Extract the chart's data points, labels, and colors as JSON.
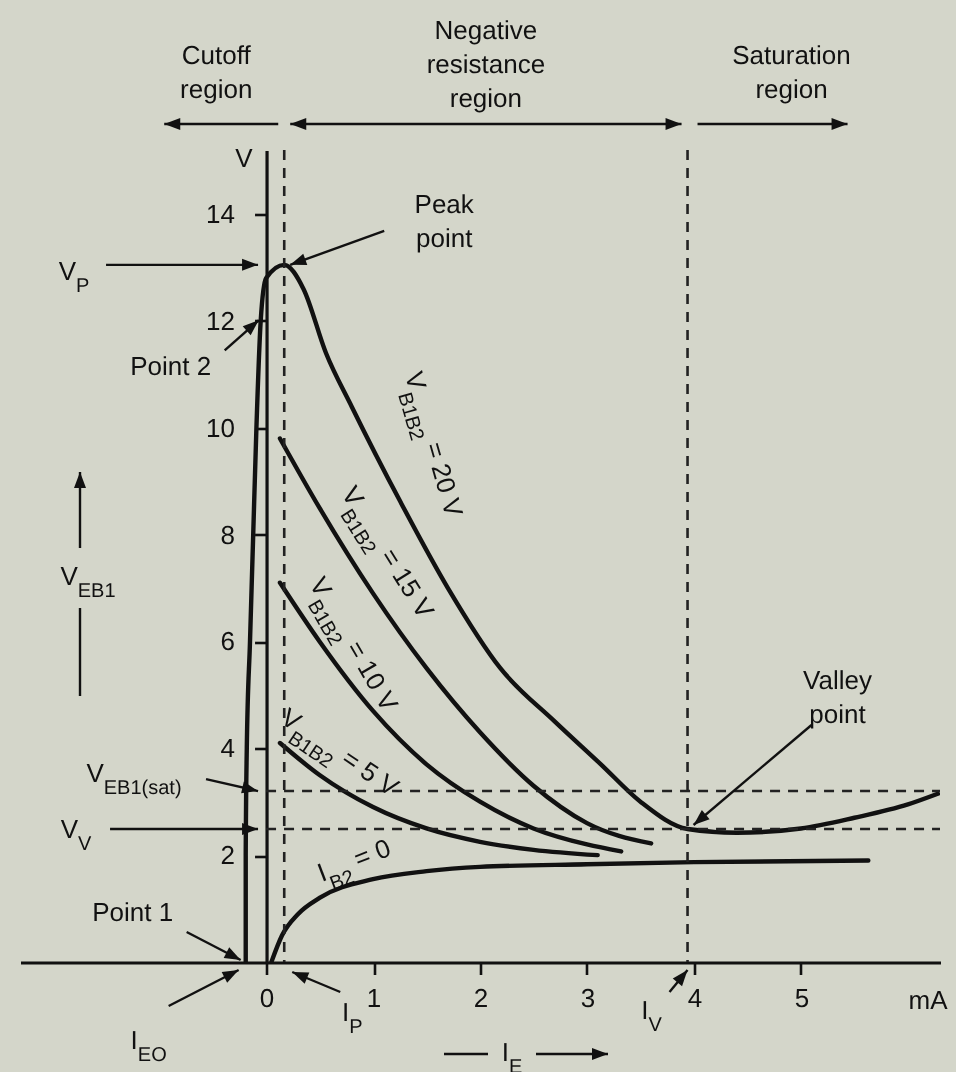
{
  "chart_data": {
    "type": "line",
    "xlabel": "I$_{E}$",
    "ylabel": "V$_{EB1}$",
    "xlim": [
      -2.3,
      6.3
    ],
    "ylim": [
      0,
      15.2
    ],
    "xticks": [
      0,
      1,
      2,
      3,
      4,
      5
    ],
    "yticks": [
      2,
      4,
      6,
      8,
      10,
      12,
      14
    ],
    "grid": false,
    "marker": "none",
    "line_style": "solid",
    "series": [
      {
        "name": "V$_{B1B2}$ = 20 V",
        "color": "#111111",
        "x": [
          -0.19,
          -0.19,
          -0.18,
          -0.15,
          -0.12,
          -0.09,
          -0.05,
          0,
          0.17,
          0.35,
          0.56,
          0.8,
          1.26,
          1.7,
          2.19,
          2.7,
          3.13,
          3.5,
          3.94,
          4.4,
          5.0,
          5.5,
          6.0,
          6.28
        ],
        "values": [
          0,
          2,
          4,
          6,
          8,
          10,
          12,
          12.8,
          13.05,
          12.6,
          11.4,
          10.4,
          8.6,
          7.0,
          5.5,
          4.5,
          3.7,
          3.0,
          2.49,
          2.42,
          2.5,
          2.7,
          2.95,
          3.15
        ]
      },
      {
        "name": "V$_{B1B2}$ = 15 V",
        "color": "#111111",
        "x": [
          0.13,
          0.5,
          1.0,
          1.5,
          2.0,
          2.5,
          3.0,
          3.6
        ],
        "values": [
          9.8,
          8.5,
          6.9,
          5.5,
          4.3,
          3.3,
          2.6,
          2.22
        ]
      },
      {
        "name": "V$_{B1B2}$ = 10 V",
        "color": "#111111",
        "x": [
          0.13,
          0.5,
          1.0,
          1.5,
          2.0,
          2.5,
          3.0,
          3.32
        ],
        "values": [
          7.1,
          6.0,
          4.7,
          3.7,
          3.0,
          2.5,
          2.2,
          2.07
        ]
      },
      {
        "name": "V$_{B1B2}$ = 5 V",
        "color": "#111111",
        "x": [
          0.13,
          0.5,
          1.0,
          1.5,
          2.0,
          2.5,
          3.1
        ],
        "values": [
          4.1,
          3.5,
          2.9,
          2.5,
          2.25,
          2.1,
          2.0
        ]
      },
      {
        "name": "I$_{B2}$ = 0",
        "color": "#111111",
        "x": [
          0.05,
          0.15,
          0.3,
          0.5,
          1.0,
          1.5,
          2.0,
          3.0,
          4.0,
          5.63
        ],
        "values": [
          0,
          0.5,
          0.9,
          1.2,
          1.55,
          1.7,
          1.78,
          1.83,
          1.87,
          1.9
        ]
      }
    ],
    "ref_lines": [
      {
        "axis": "x",
        "value": 0.17,
        "color": "#222222",
        "line_style": "dashed"
      },
      {
        "axis": "x",
        "value": 3.94,
        "color": "#222222",
        "line_style": "dashed"
      },
      {
        "axis": "y",
        "value": 2.49,
        "label": "V$_{V}$",
        "color": "#222222",
        "line_style": "dashed"
      },
      {
        "axis": "y",
        "value": 3.2,
        "label": "V$_{EB1(sat)}$",
        "color": "#222222",
        "line_style": "dashed"
      }
    ],
    "annotations": [
      "Cutoff region",
      "Negative resistance region",
      "Saturation region",
      "V",
      "mA",
      {
        "text": "Peak point",
        "x": 0.17,
        "y": 13.05
      },
      {
        "text": "Point 2",
        "x": -0.05,
        "y": 12.05
      },
      {
        "text": "V$_{P}$",
        "x": 0,
        "y": 13.05
      },
      {
        "text": "Point 1",
        "x": -0.2,
        "y": 0
      },
      {
        "text": "I$_{EO}$",
        "x": -0.2,
        "y": 0
      },
      {
        "text": "Valley point",
        "x": 3.94,
        "y": 2.49
      },
      {
        "text": "I$_{P}$",
        "x": 0.17,
        "y": 0
      },
      {
        "text": "I$_{V}$",
        "x": 3.94,
        "y": 0
      }
    ]
  }
}
